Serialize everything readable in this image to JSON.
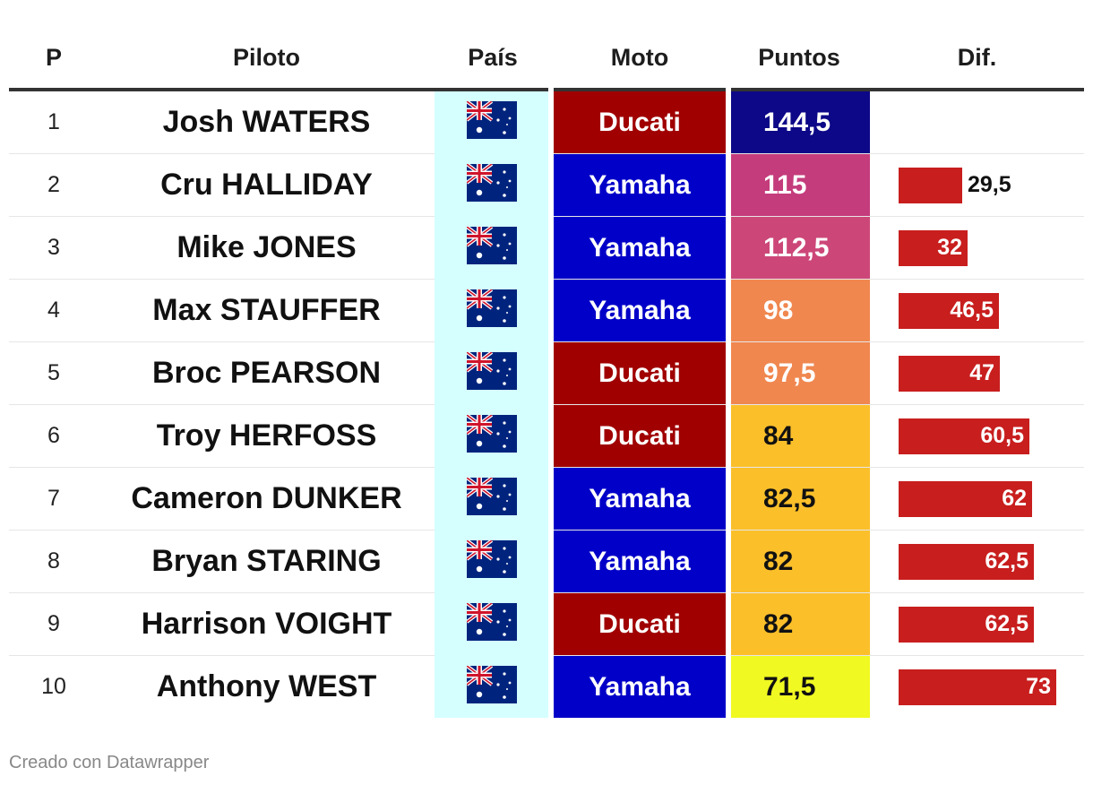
{
  "chart_data": {
    "type": "table",
    "columns": [
      "P",
      "Piloto",
      "País",
      "Moto",
      "Puntos",
      "Dif."
    ],
    "rows": [
      {
        "pos": "1",
        "name": "Josh WATERS",
        "country": "australia-flag",
        "moto": "Ducati",
        "points": "144,5",
        "points_value": 144.5,
        "dif": "",
        "dif_value": 0
      },
      {
        "pos": "2",
        "name": "Cru HALLIDAY",
        "country": "australia-flag",
        "moto": "Yamaha",
        "points": "115",
        "points_value": 115,
        "dif": "29,5",
        "dif_value": 29.5
      },
      {
        "pos": "3",
        "name": "Mike JONES",
        "country": "australia-flag",
        "moto": "Yamaha",
        "points": "112,5",
        "points_value": 112.5,
        "dif": "32",
        "dif_value": 32
      },
      {
        "pos": "4",
        "name": "Max STAUFFER",
        "country": "australia-flag",
        "moto": "Yamaha",
        "points": "98",
        "points_value": 98,
        "dif": "46,5",
        "dif_value": 46.5
      },
      {
        "pos": "5",
        "name": "Broc PEARSON",
        "country": "australia-flag",
        "moto": "Ducati",
        "points": "97,5",
        "points_value": 97.5,
        "dif": "47",
        "dif_value": 47
      },
      {
        "pos": "6",
        "name": "Troy HERFOSS",
        "country": "australia-flag",
        "moto": "Ducati",
        "points": "84",
        "points_value": 84,
        "dif": "60,5",
        "dif_value": 60.5
      },
      {
        "pos": "7",
        "name": "Cameron DUNKER",
        "country": "australia-flag",
        "moto": "Yamaha",
        "points": "82,5",
        "points_value": 82.5,
        "dif": "62",
        "dif_value": 62
      },
      {
        "pos": "8",
        "name": "Bryan STARING",
        "country": "australia-flag",
        "moto": "Yamaha",
        "points": "82",
        "points_value": 82,
        "dif": "62,5",
        "dif_value": 62.5
      },
      {
        "pos": "9",
        "name": "Harrison VOIGHT",
        "country": "australia-flag",
        "moto": "Ducati",
        "points": "82",
        "points_value": 82,
        "dif": "62,5",
        "dif_value": 62.5
      },
      {
        "pos": "10",
        "name": "Anthony WEST",
        "country": "australia-flag",
        "moto": "Yamaha",
        "points": "71,5",
        "points_value": 71.5,
        "dif": "73",
        "dif_value": 73
      }
    ],
    "dif_max": 73,
    "colors": {
      "ducati": "#a00000",
      "yamaha": "#0000c8",
      "dif_bar": "#c81e1e",
      "country_bg": "#d5ffff",
      "points_scale": [
        "#0d0887",
        "#c43c7c",
        "#cc4778",
        "#f0874f",
        "#f0874f",
        "#fbbf2a",
        "#fbbf2a",
        "#fbbf2a",
        "#fbbf2a",
        "#f0f921"
      ]
    }
  },
  "footer": "Creado con Datawrapper"
}
